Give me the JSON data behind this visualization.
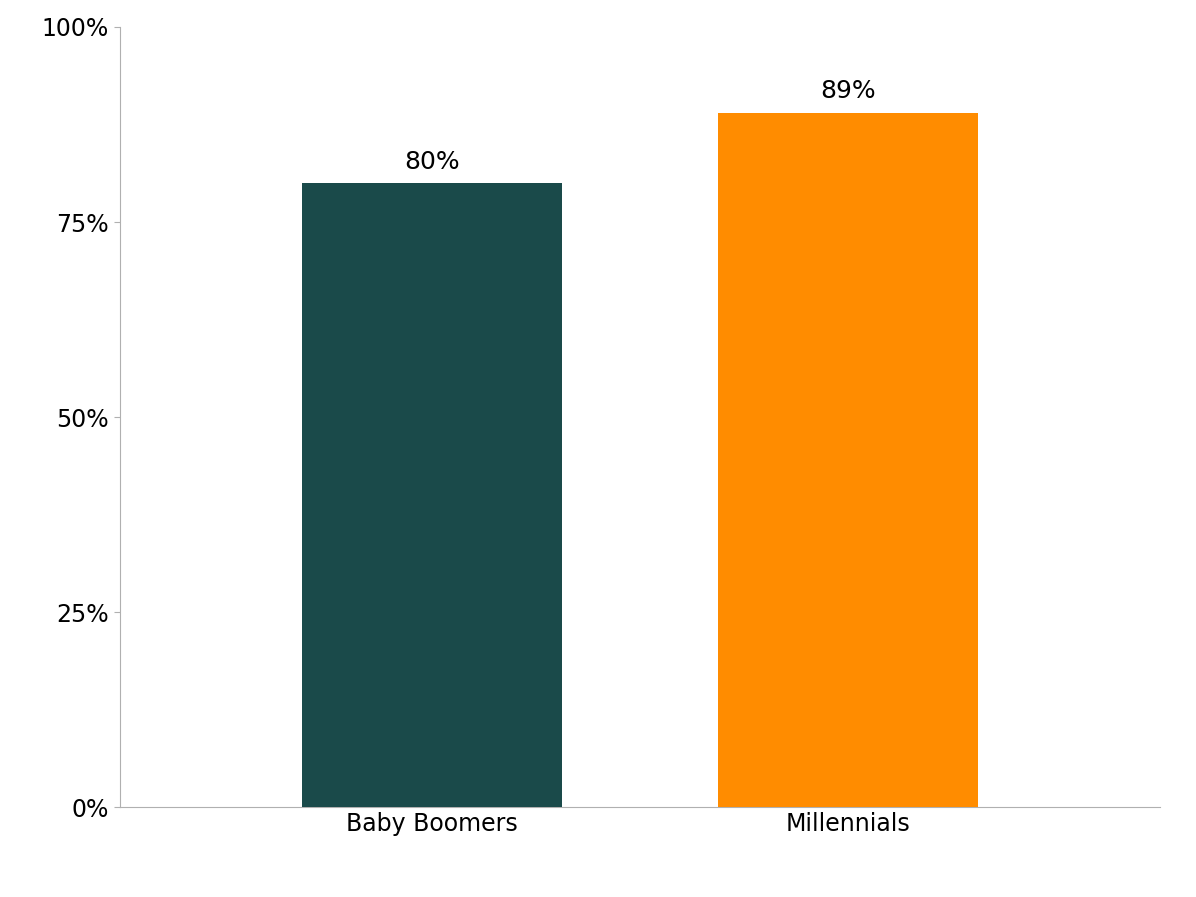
{
  "categories": [
    "Baby Boomers",
    "Millennials"
  ],
  "values": [
    80,
    89
  ],
  "bar_colors": [
    "#1a4a4a",
    "#ff8c00"
  ],
  "labels": [
    "80%",
    "89%"
  ],
  "ylim": [
    0,
    100
  ],
  "yticks": [
    0,
    25,
    50,
    75,
    100
  ],
  "ytick_labels": [
    "0%",
    "25%",
    "50%",
    "75%",
    "100%"
  ],
  "background_color": "#ffffff",
  "label_fontsize": 18,
  "tick_fontsize": 17,
  "bar_width": 0.25,
  "bar_positions": [
    0.3,
    0.7
  ],
  "xlim": [
    0.0,
    1.0
  ]
}
